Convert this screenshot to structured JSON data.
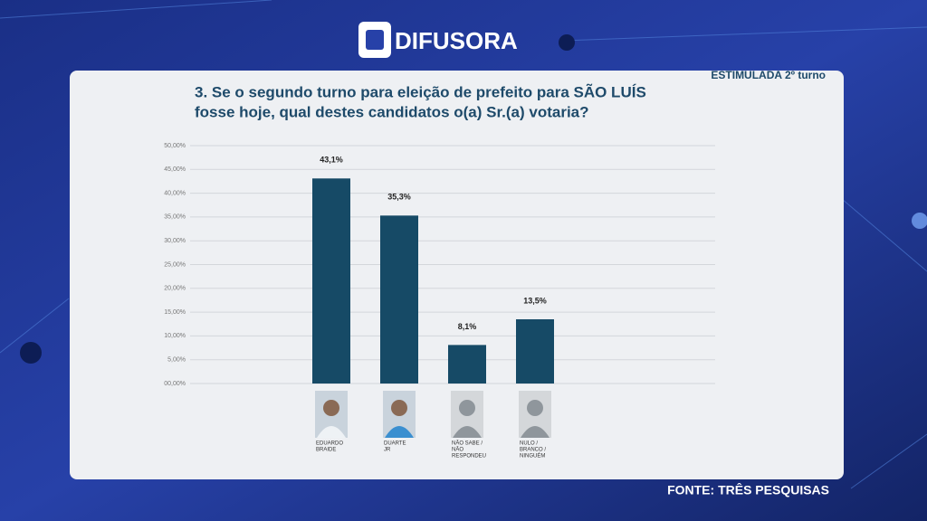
{
  "brand": "DIFUSORA",
  "tag": "ESTIMULADA 2º turno",
  "source": "FONTE: TRÊS PESQUISAS",
  "chart_data": {
    "type": "bar",
    "title": [
      "3. Se o segundo turno para eleição de prefeito para SÃO LUÍS",
      "fosse hoje, qual destes candidatos o(a) Sr.(a) votaria?"
    ],
    "categories": [
      [
        "EDUARDO",
        "BRAIDE"
      ],
      [
        "DUARTE",
        "JR"
      ],
      [
        "NÃO SABE /",
        "NÃO",
        "RESPONDEU"
      ],
      [
        "NULO /",
        "BRANCO /",
        "NINGUÉM"
      ]
    ],
    "values": [
      43.1,
      35.3,
      8.1,
      13.5
    ],
    "value_labels": [
      "43,1%",
      "35,3%",
      "8,1%",
      "13,5%"
    ],
    "color": "#164a66",
    "ylim": [
      0,
      50
    ],
    "yticks": [
      {
        "value": 0,
        "label": "00,00%"
      },
      {
        "value": 5,
        "label": "5,00%"
      },
      {
        "value": 10,
        "label": "10,00%"
      },
      {
        "value": 15,
        "label": "15,00%"
      },
      {
        "value": 20,
        "label": "20,00%"
      },
      {
        "value": 25,
        "label": "25,00%"
      },
      {
        "value": 30,
        "label": "30,00%"
      },
      {
        "value": 35,
        "label": "35,00%"
      },
      {
        "value": 40,
        "label": "40,00%"
      },
      {
        "value": 45,
        "label": "45,00%"
      },
      {
        "value": 50,
        "label": "50,00%"
      }
    ],
    "grid": true
  }
}
